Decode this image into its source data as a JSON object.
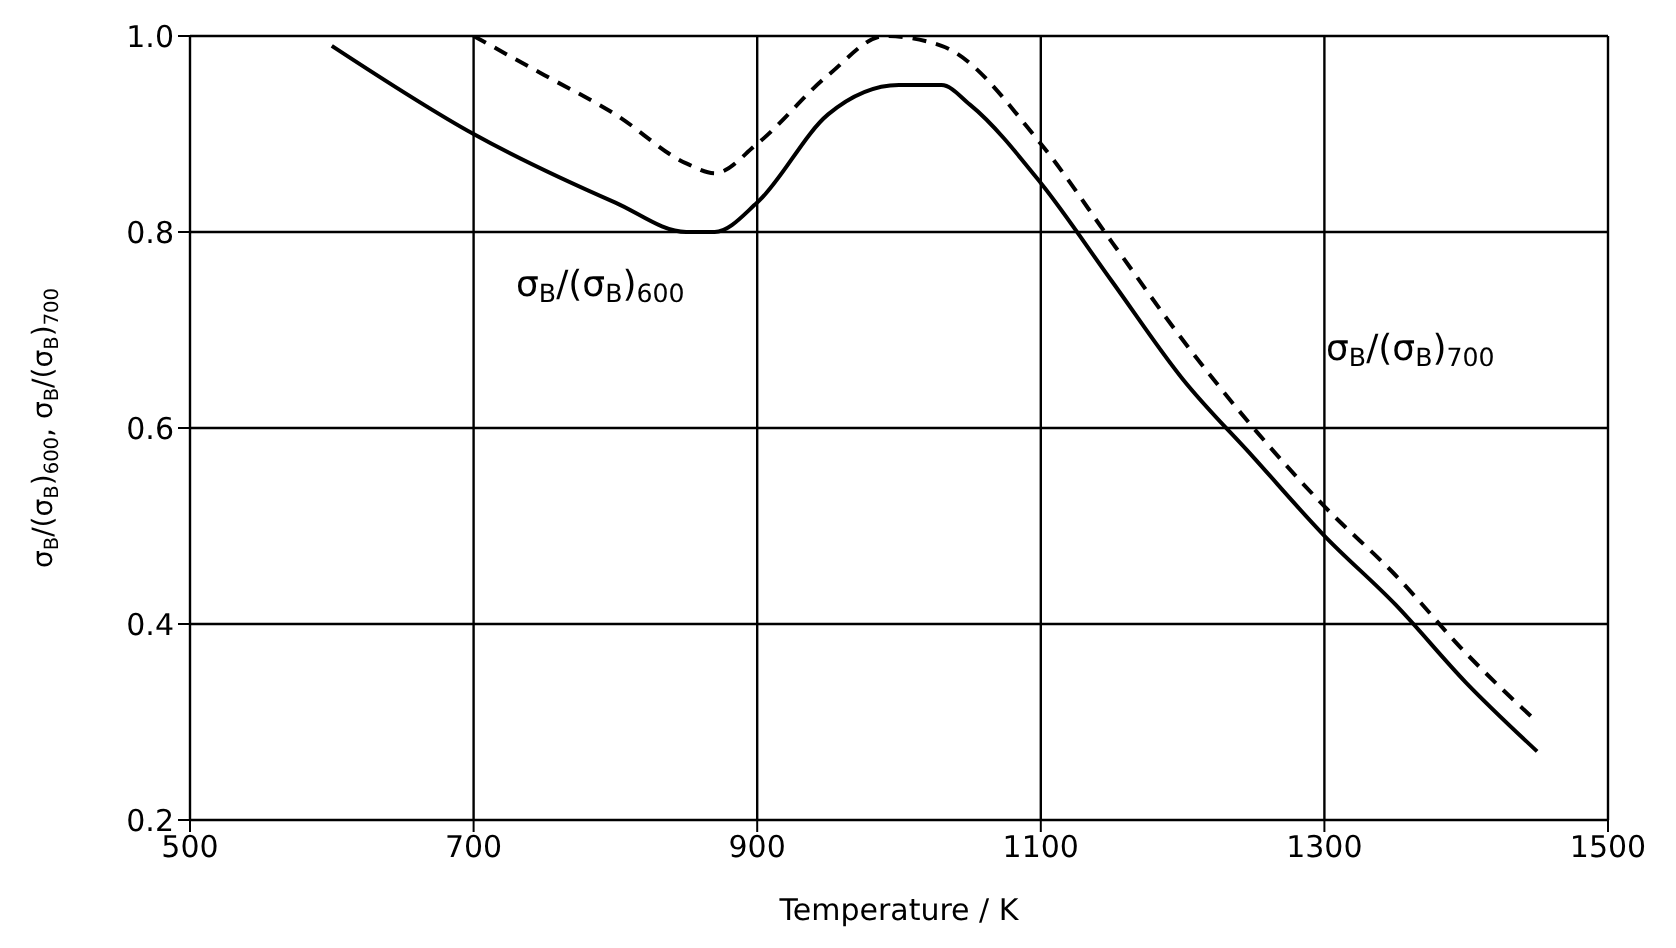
{
  "chart_data": {
    "type": "line",
    "xlabel": "Temperature / K",
    "ylabel": "σ$_{B}$/(σ$_{B}$)$_{600}$, σ$_{B}$/(σ$_{B}$)$_{700}$",
    "xlim": [
      500,
      1500
    ],
    "xticks": [
      500,
      700,
      900,
      1100,
      1300,
      1500
    ],
    "ylim": [
      0.2,
      1.0
    ],
    "yticks": [
      {
        "value": 0.2,
        "label": "0.2"
      },
      {
        "value": 0.4,
        "label": "0.4"
      },
      {
        "value": 0.6,
        "label": "0.6"
      },
      {
        "value": 0.8,
        "label": "0.8"
      },
      {
        "value": 1,
        "label": "1.0"
      }
    ],
    "grid": true,
    "marker": "none",
    "series": [
      {
        "name": "σ$_{B}$/(σ$_{B}$)$_{600}$",
        "color": "#000000",
        "line_style": "solid",
        "x": [
          600,
          700,
          800,
          850,
          870,
          900,
          950,
          1000,
          1030,
          1050,
          1100,
          1150,
          1200,
          1250,
          1300,
          1350,
          1400,
          1450
        ],
        "values": [
          0.99,
          0.9,
          0.83,
          0.8,
          0.8,
          0.83,
          0.92,
          0.95,
          0.95,
          0.93,
          0.85,
          0.75,
          0.65,
          0.57,
          0.49,
          0.42,
          0.34,
          0.27
        ]
      },
      {
        "name": "σ$_{B}$/(σ$_{B}$)$_{700}$",
        "color": "#000000",
        "line_style": "dashed",
        "x": [
          700,
          750,
          800,
          850,
          870,
          900,
          950,
          990,
          1030,
          1100,
          1150,
          1200,
          1250,
          1300,
          1350,
          1400,
          1450
        ],
        "values": [
          1.0,
          0.96,
          0.92,
          0.87,
          0.86,
          0.89,
          0.96,
          1.0,
          0.99,
          0.89,
          0.79,
          0.69,
          0.6,
          0.52,
          0.45,
          0.37,
          0.3
        ]
      }
    ]
  }
}
